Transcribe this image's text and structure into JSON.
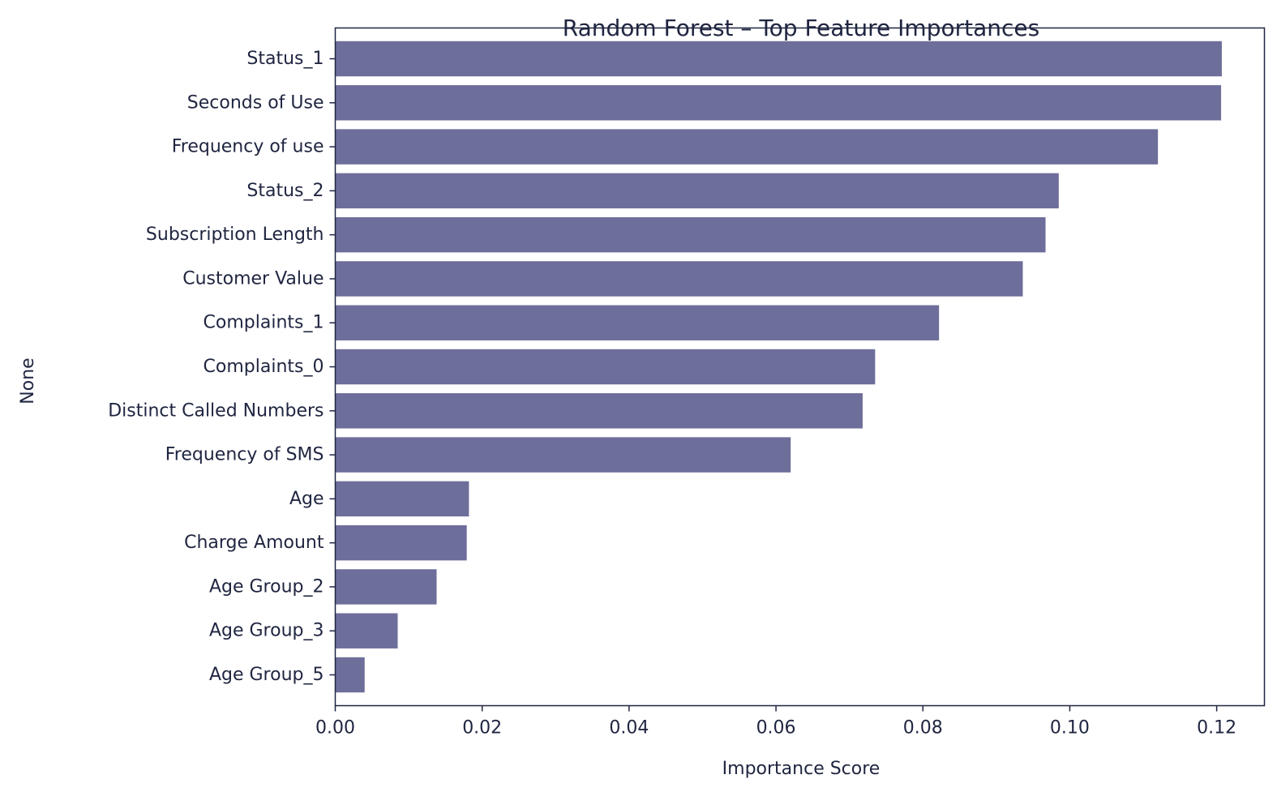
{
  "chart_data": {
    "type": "bar",
    "orientation": "horizontal",
    "title": "Random Forest – Top Feature Importances",
    "xlabel": "Importance Score",
    "ylabel": "None",
    "xlim": [
      0,
      0.1265
    ],
    "xticks": [
      "0.00",
      "0.02",
      "0.04",
      "0.06",
      "0.08",
      "0.10",
      "0.12"
    ],
    "grid": false,
    "bar_color": "#6d6e9a",
    "categories": [
      "Status_1",
      "Seconds of Use",
      "Frequency of use",
      "Status_2",
      "Subscription Length",
      "Customer Value",
      "Complaints_1",
      "Complaints_0",
      "Distinct Called Numbers",
      "Frequency of SMS",
      "Age",
      "Charge Amount",
      "Age Group_2",
      "Age Group_3",
      "Age Group_5"
    ],
    "values": [
      0.1207,
      0.1206,
      0.112,
      0.0985,
      0.0967,
      0.0936,
      0.0822,
      0.0735,
      0.0718,
      0.062,
      0.0182,
      0.0179,
      0.0138,
      0.0085,
      0.004
    ]
  }
}
